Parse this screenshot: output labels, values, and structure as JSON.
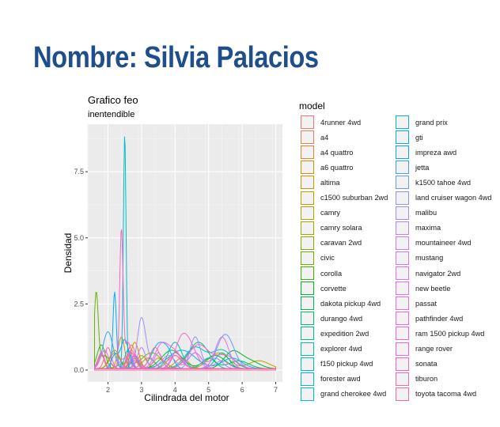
{
  "page": {
    "title": "Nombre: Silvia Palacios"
  },
  "chart_data": {
    "type": "area",
    "title": "Grafico feo",
    "subtitle": "inentendible",
    "xlabel": "Cilindrada del motor",
    "ylabel": "Densidad",
    "xlim": [
      1.4,
      7.2
    ],
    "ylim": [
      -0.45,
      9.3
    ],
    "xticks": [
      2,
      3,
      4,
      5,
      6,
      7
    ],
    "yticks": [
      0,
      2.5,
      5,
      7.5
    ],
    "ytick_labels": [
      "0.0",
      "2.5",
      "5.0",
      "7.5"
    ],
    "grid": true,
    "legend_title": "model",
    "legend_position": "right",
    "series": [
      {
        "name": "4runner 4wd",
        "color": "#F8766D",
        "peaks": [
          [
            2.7,
            0.9,
            0.12
          ],
          [
            4.0,
            0.6,
            0.2
          ]
        ]
      },
      {
        "name": "a4",
        "color": "#F27D52",
        "peaks": [
          [
            1.8,
            0.6,
            0.08
          ],
          [
            2.8,
            0.4,
            0.15
          ]
        ]
      },
      {
        "name": "a4 quattro",
        "color": "#EA8331",
        "peaks": [
          [
            1.8,
            0.5,
            0.1
          ],
          [
            2.8,
            0.3,
            0.15
          ]
        ]
      },
      {
        "name": "a6 quattro",
        "color": "#E08B00",
        "peaks": [
          [
            2.8,
            1.0,
            0.12
          ],
          [
            4.2,
            0.4,
            0.2
          ]
        ]
      },
      {
        "name": "altima",
        "color": "#D39200",
        "peaks": [
          [
            2.4,
            1.2,
            0.1
          ],
          [
            3.5,
            0.4,
            0.15
          ]
        ]
      },
      {
        "name": "c1500 suburban 2wd",
        "color": "#C49A00",
        "peaks": [
          [
            5.3,
            0.6,
            0.3
          ],
          [
            6.5,
            0.3,
            0.3
          ]
        ]
      },
      {
        "name": "camry",
        "color": "#B2A100",
        "peaks": [
          [
            2.2,
            0.7,
            0.15
          ],
          [
            3.0,
            0.5,
            0.15
          ]
        ]
      },
      {
        "name": "camry solara",
        "color": "#9DA700",
        "peaks": [
          [
            2.2,
            0.6,
            0.15
          ],
          [
            3.2,
            0.4,
            0.18
          ]
        ]
      },
      {
        "name": "caravan 2wd",
        "color": "#85AD00",
        "peaks": [
          [
            3.3,
            0.6,
            0.3
          ],
          [
            2.5,
            0.2,
            0.2
          ]
        ]
      },
      {
        "name": "civic",
        "color": "#68B100",
        "peaks": [
          [
            1.65,
            2.8,
            0.06
          ],
          [
            1.9,
            0.5,
            0.15
          ]
        ]
      },
      {
        "name": "corolla",
        "color": "#3DB600",
        "peaks": [
          [
            1.8,
            0.9,
            0.12
          ]
        ]
      },
      {
        "name": "corvette",
        "color": "#00B81F",
        "peaks": [
          [
            5.7,
            0.6,
            0.25
          ],
          [
            6.2,
            0.3,
            0.3
          ]
        ]
      },
      {
        "name": "dakota pickup 4wd",
        "color": "#00BB4B",
        "peaks": [
          [
            3.9,
            0.7,
            0.3
          ],
          [
            5.2,
            0.5,
            0.3
          ]
        ]
      },
      {
        "name": "durango 4wd",
        "color": "#00BE6C",
        "peaks": [
          [
            4.7,
            1.0,
            0.3
          ],
          [
            5.9,
            0.3,
            0.3
          ]
        ]
      },
      {
        "name": "expedition 2wd",
        "color": "#00BF89",
        "peaks": [
          [
            5.4,
            0.6,
            0.2
          ]
        ]
      },
      {
        "name": "explorer 4wd",
        "color": "#00C0A3",
        "peaks": [
          [
            4.0,
            1.0,
            0.2
          ],
          [
            5.0,
            0.4,
            0.2
          ]
        ]
      },
      {
        "name": "f150 pickup 4wd",
        "color": "#00BFBB",
        "peaks": [
          [
            4.6,
            0.8,
            0.3
          ],
          [
            5.4,
            0.7,
            0.3
          ]
        ]
      },
      {
        "name": "forester awd",
        "color": "#00BCD1",
        "peaks": [
          [
            2.5,
            8.9,
            0.04
          ]
        ]
      },
      {
        "name": "grand cherokee 4wd",
        "color": "#00B8E4",
        "peaks": [
          [
            4.2,
            0.7,
            0.4
          ],
          [
            5.7,
            0.4,
            0.3
          ]
        ]
      },
      {
        "name": "grand prix",
        "color": "#00B3F4",
        "peaks": [
          [
            3.5,
            0.9,
            0.2
          ],
          [
            3.8,
            0.5,
            0.15
          ]
        ]
      },
      {
        "name": "gti",
        "color": "#00ACFC",
        "peaks": [
          [
            2.2,
            2.9,
            0.05
          ],
          [
            2.6,
            0.7,
            0.1
          ]
        ]
      },
      {
        "name": "impreza awd",
        "color": "#00A5FF",
        "peaks": [
          [
            2.5,
            1.1,
            0.12
          ],
          [
            2.2,
            0.5,
            0.1
          ]
        ]
      },
      {
        "name": "jetta",
        "color": "#3C9EFF",
        "peaks": [
          [
            2.0,
            1.4,
            0.15
          ],
          [
            2.8,
            0.5,
            0.1
          ]
        ]
      },
      {
        "name": "k1500 tahoe 4wd",
        "color": "#6E97FF",
        "peaks": [
          [
            5.5,
            1.3,
            0.25
          ]
        ]
      },
      {
        "name": "land cruiser wagon 4wd",
        "color": "#8F91FF",
        "peaks": [
          [
            4.6,
            1.2,
            0.15
          ],
          [
            5.2,
            0.4,
            0.2
          ]
        ]
      },
      {
        "name": "malibu",
        "color": "#A58AFF",
        "peaks": [
          [
            3.0,
            1.9,
            0.12
          ],
          [
            3.3,
            0.3,
            0.15
          ]
        ]
      },
      {
        "name": "maxima",
        "color": "#B882FF",
        "peaks": [
          [
            3.0,
            0.8,
            0.12
          ],
          [
            3.5,
            0.6,
            0.12
          ]
        ]
      },
      {
        "name": "mountaineer 4wd",
        "color": "#C77CFF",
        "peaks": [
          [
            4.0,
            0.5,
            0.15
          ],
          [
            4.6,
            0.6,
            0.2
          ]
        ]
      },
      {
        "name": "mustang",
        "color": "#D376FF",
        "peaks": [
          [
            3.8,
            0.5,
            0.2
          ],
          [
            4.6,
            0.6,
            0.2
          ],
          [
            5.4,
            0.3,
            0.2
          ]
        ]
      },
      {
        "name": "navigator 2wd",
        "color": "#DE71F9",
        "peaks": [
          [
            5.4,
            1.2,
            0.2
          ]
        ]
      },
      {
        "name": "new beetle",
        "color": "#E76BF3",
        "peaks": [
          [
            1.9,
            0.7,
            0.12
          ],
          [
            2.5,
            0.4,
            0.15
          ]
        ]
      },
      {
        "name": "passat",
        "color": "#EE67EB",
        "peaks": [
          [
            1.8,
            0.6,
            0.1
          ],
          [
            2.8,
            0.5,
            0.15
          ]
        ]
      },
      {
        "name": "pathfinder 4wd",
        "color": "#F564E3",
        "peaks": [
          [
            3.6,
            0.9,
            0.2
          ],
          [
            4.0,
            0.6,
            0.2
          ]
        ]
      },
      {
        "name": "ram 1500 pickup 4wd",
        "color": "#FA62D9",
        "peaks": [
          [
            4.7,
            0.9,
            0.3
          ],
          [
            5.5,
            0.5,
            0.3
          ]
        ]
      },
      {
        "name": "range rover",
        "color": "#FD61CE",
        "peaks": [
          [
            4.2,
            1.1,
            0.2
          ],
          [
            4.5,
            0.6,
            0.2
          ]
        ]
      },
      {
        "name": "sonata",
        "color": "#FF62BF",
        "peaks": [
          [
            2.4,
            5.2,
            0.05
          ],
          [
            2.6,
            1.0,
            0.1
          ]
        ]
      },
      {
        "name": "tiburon",
        "color": "#FF65AE",
        "peaks": [
          [
            2.0,
            0.8,
            0.1
          ],
          [
            2.7,
            0.6,
            0.12
          ]
        ]
      },
      {
        "name": "toyota tacoma 4wd",
        "color": "#FF689E",
        "peaks": [
          [
            2.7,
            0.7,
            0.12
          ],
          [
            3.4,
            0.8,
            0.15
          ],
          [
            4.0,
            0.5,
            0.2
          ]
        ]
      }
    ]
  }
}
